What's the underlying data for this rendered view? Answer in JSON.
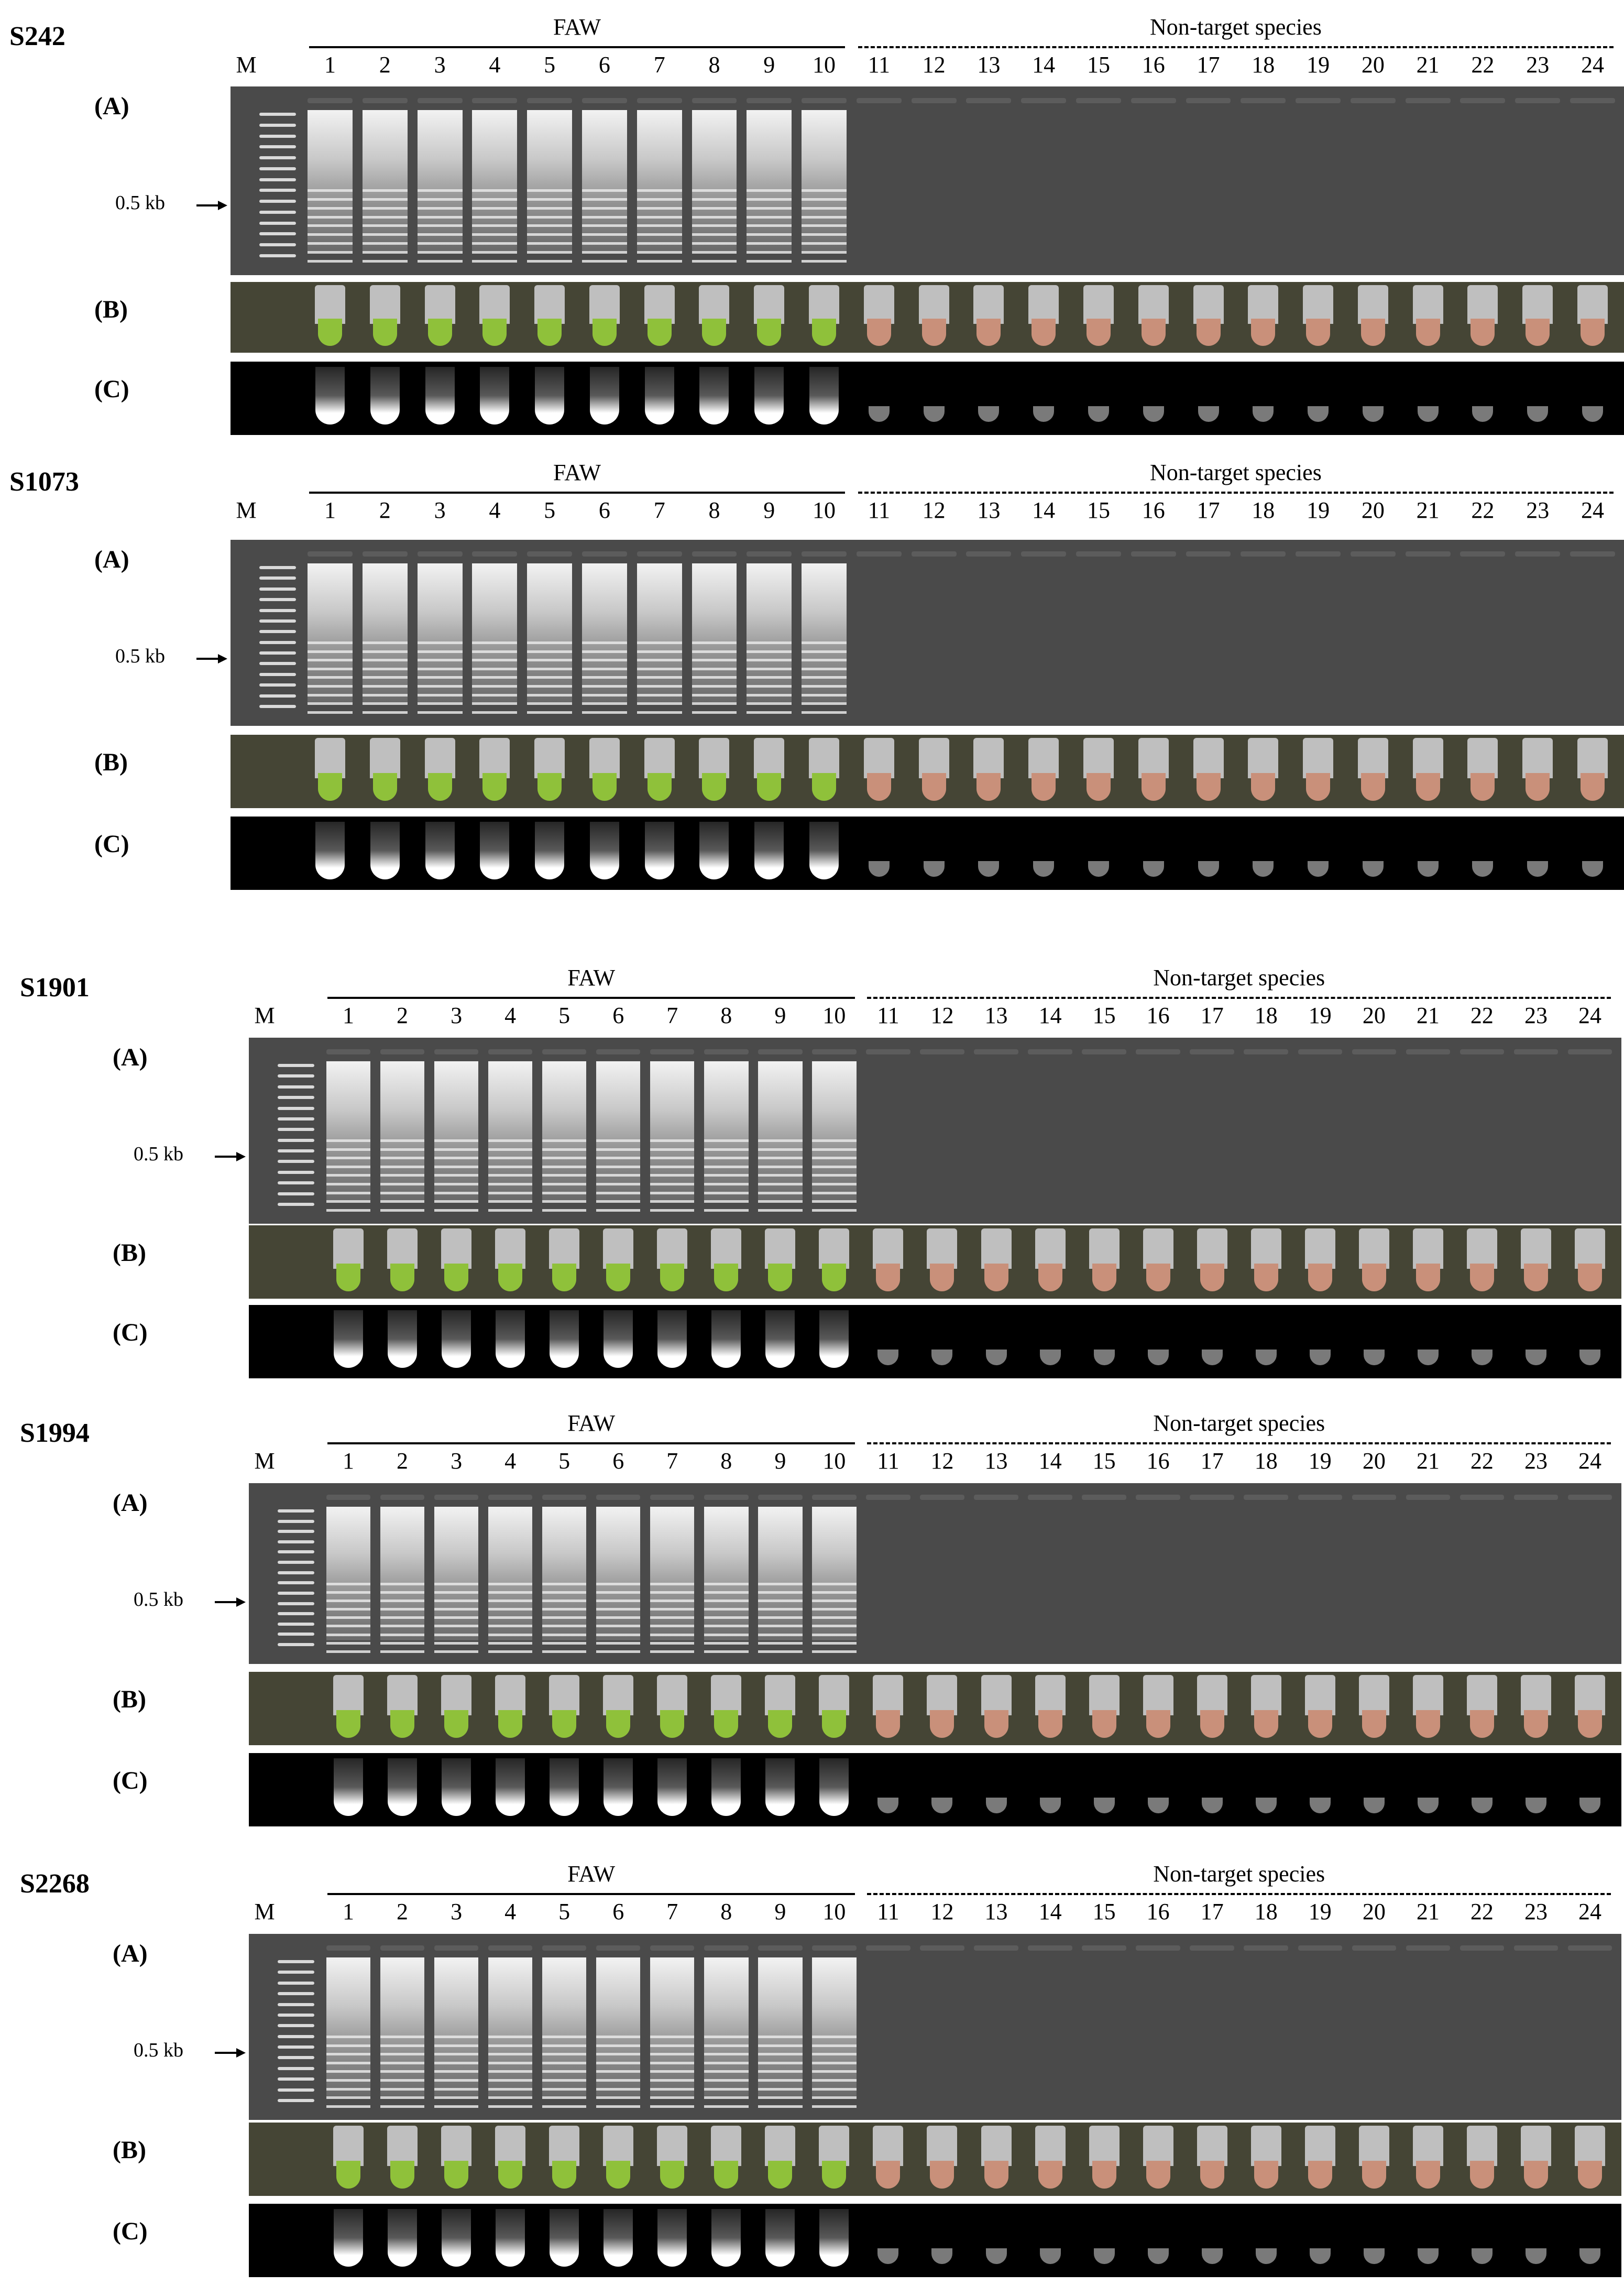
{
  "figure": {
    "lane_marker": "M",
    "group_target": "FAW",
    "group_nontarget": "Non-target species",
    "lanes": [
      "1",
      "2",
      "3",
      "4",
      "5",
      "6",
      "7",
      "8",
      "9",
      "10",
      "11",
      "12",
      "13",
      "14",
      "15",
      "16",
      "17",
      "18",
      "19",
      "20",
      "21",
      "22",
      "23",
      "24"
    ],
    "row_labels": {
      "a": "(A)",
      "b": "(B)",
      "c": "(C)"
    },
    "size_marker": "0.5 kb",
    "colors": {
      "positive_tube": "#8fc13a",
      "negative_tube": "#c9907a",
      "gel_bg": "#4a4a4a",
      "uv_bg": "#000000"
    },
    "blocks": [
      {
        "title": "S242"
      },
      {
        "title": "S1073"
      },
      {
        "title": "S1901"
      },
      {
        "title": "S1994"
      },
      {
        "title": "S2268"
      }
    ]
  }
}
